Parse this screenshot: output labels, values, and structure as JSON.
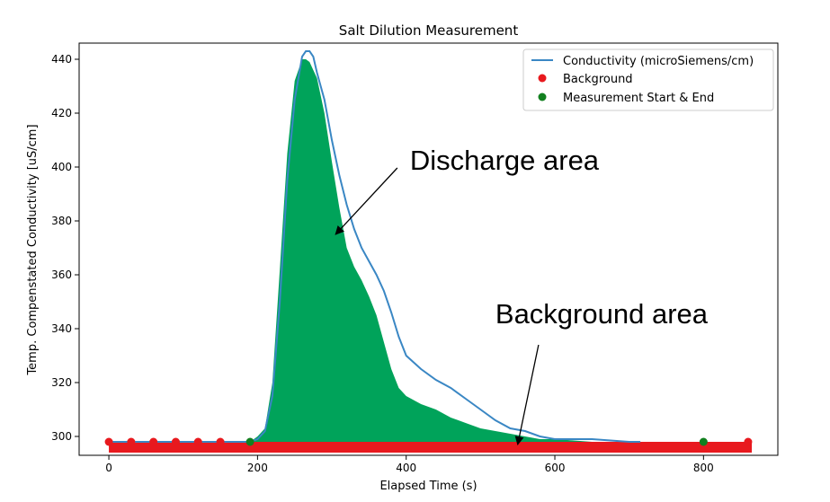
{
  "chart_data": {
    "type": "line",
    "title": "Salt Dilution Measurement",
    "xlabel": "Elapsed Time (s)",
    "ylabel": "Temp. Compenstated Conductivity [uS/cm]",
    "xlim": [
      -40,
      900
    ],
    "ylim": [
      293,
      446
    ],
    "x_ticks": [
      0,
      200,
      400,
      600,
      800
    ],
    "y_ticks": [
      300,
      320,
      340,
      360,
      380,
      400,
      420,
      440
    ],
    "grid": false,
    "legend_position": "top-right",
    "series": [
      {
        "name": "Conductivity (microSiemens/cm)",
        "kind": "line",
        "color": "#3a87c4",
        "x": [
          0,
          50,
          100,
          150,
          190,
          200,
          210,
          220,
          230,
          240,
          250,
          260,
          265,
          270,
          275,
          280,
          290,
          300,
          310,
          320,
          330,
          340,
          350,
          360,
          370,
          380,
          390,
          400,
          420,
          440,
          460,
          480,
          500,
          520,
          540,
          560,
          580,
          600,
          650,
          700,
          715
        ],
        "y": [
          298,
          298,
          298,
          298,
          298,
          299,
          302,
          315,
          350,
          395,
          425,
          441,
          443,
          443,
          441,
          435,
          425,
          410,
          397,
          386,
          377,
          370,
          365,
          360,
          354,
          346,
          337,
          330,
          325,
          321,
          318,
          314,
          310,
          306,
          303,
          302,
          300,
          299,
          299,
          298,
          298
        ]
      },
      {
        "name": "Background",
        "kind": "scatter",
        "color": "#e8191e",
        "x": [
          0,
          30,
          60,
          90,
          120,
          150,
          860
        ],
        "y": [
          298,
          298,
          298,
          298,
          298,
          298,
          298
        ]
      },
      {
        "name": "Measurement Start & End",
        "kind": "scatter",
        "color": "#12801f",
        "x": [
          190,
          800
        ],
        "y": [
          298,
          298
        ]
      }
    ],
    "filled_areas": [
      {
        "label": "Discharge area",
        "color": "#00a35a",
        "x": [
          190,
          200,
          210,
          220,
          230,
          240,
          250,
          260,
          265,
          270,
          280,
          290,
          300,
          310,
          320,
          330,
          340,
          350,
          360,
          370,
          380,
          390,
          400,
          420,
          440,
          460,
          480,
          500,
          520,
          540,
          560,
          580,
          600,
          650,
          700,
          715
        ],
        "y": [
          298,
          300,
          303,
          320,
          362,
          405,
          432,
          440,
          440,
          439,
          433,
          420,
          402,
          385,
          370,
          363,
          358,
          352,
          345,
          335,
          325,
          318,
          315,
          312,
          310,
          307,
          305,
          303,
          302,
          301,
          300,
          299,
          299,
          298,
          298,
          298
        ]
      },
      {
        "label": "Background area",
        "color": "#e8191e",
        "x_range": [
          0,
          865
        ],
        "y_range": [
          294,
          298
        ]
      }
    ],
    "annotations": [
      {
        "text": "Discharge area",
        "text_at": [
          405,
          399
        ],
        "arrow_to": [
          305,
          375
        ]
      },
      {
        "text": "Background area",
        "text_at": [
          520,
          342
        ],
        "arrow_to": [
          550,
          297
        ]
      }
    ]
  }
}
